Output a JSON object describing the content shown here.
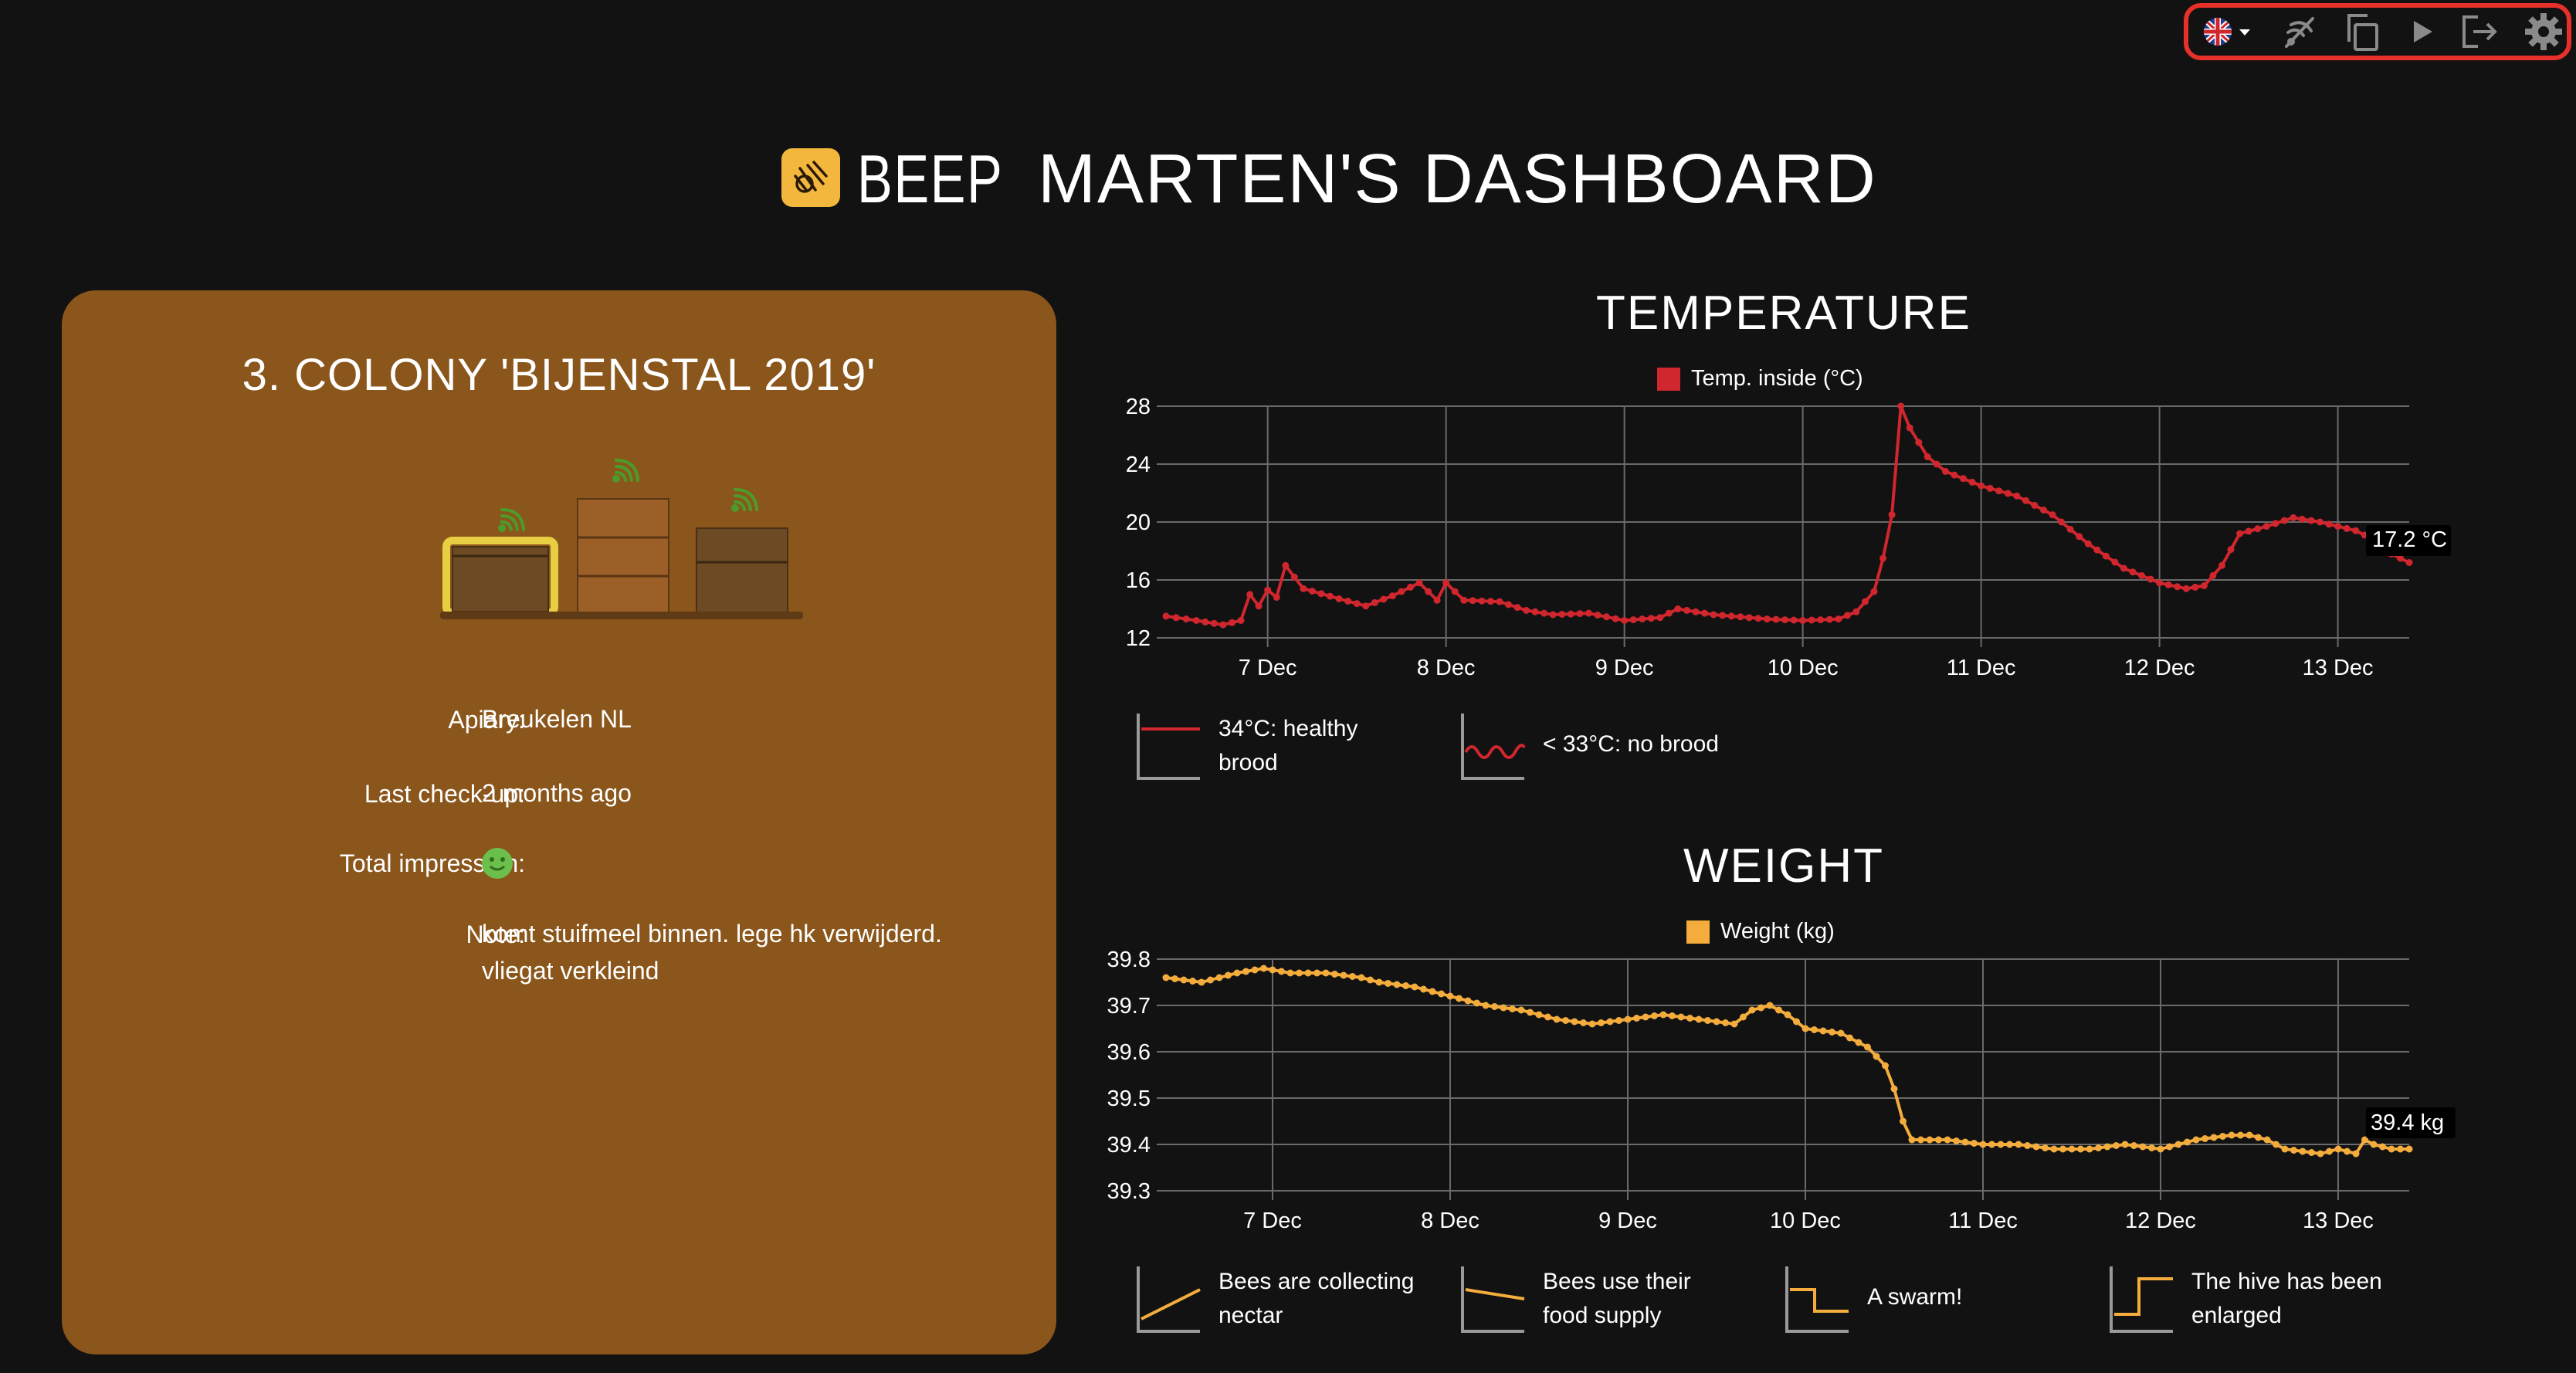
{
  "toolbar": {
    "items": [
      {
        "name": "language-selector",
        "icon": "uk-flag-icon"
      },
      {
        "name": "no-sensor-button",
        "icon": "sensor-off-icon"
      },
      {
        "name": "copy-button",
        "icon": "copy-icon"
      },
      {
        "name": "play-button",
        "icon": "play-icon"
      },
      {
        "name": "logout-button",
        "icon": "logout-icon"
      },
      {
        "name": "settings-button",
        "icon": "gear-icon"
      }
    ]
  },
  "header": {
    "brand": "BEEP",
    "title": "MARTEN'S DASHBOARD",
    "logo_color": "#f4b73e"
  },
  "colony": {
    "title": "3. COLONY 'BIJENSTAL 2019'",
    "rows": [
      {
        "label": "Apiary:",
        "value": "Breukelen NL"
      },
      {
        "label": "Last check-up:",
        "value": "2 months ago"
      },
      {
        "label": "Total impression:",
        "value": "good",
        "icon": "smiley-icon"
      },
      {
        "label": "Note:",
        "value": "komt stuifmeel binnen. lege hk verwijderd. vliegat verkleind"
      }
    ],
    "card_color": "#8b561b"
  },
  "temperature": {
    "title": "TEMPERATURE",
    "legend": "Temp. inside (°C)",
    "current_value": "17.2 °C",
    "explanations": [
      {
        "text": "34°C: healthy brood",
        "icon": "healthy-brood-icon"
      },
      {
        "text": "< 33°C: no brood",
        "icon": "no-brood-icon"
      }
    ]
  },
  "weight": {
    "title": "WEIGHT",
    "legend": "Weight (kg)",
    "current_value": "39.4 kg",
    "explanations": [
      {
        "text": "Bees are collecting nectar",
        "icon": "weight-rising-icon"
      },
      {
        "text": "Bees use their food supply",
        "icon": "weight-falling-icon"
      },
      {
        "text": "A swarm!",
        "icon": "weight-drop-icon"
      },
      {
        "text": "The hive has been enlarged",
        "icon": "weight-jump-icon"
      }
    ]
  },
  "chart_data": [
    {
      "type": "line",
      "title": "TEMPERATURE",
      "series_name": "Temp. inside (°C)",
      "color": "#d0262e",
      "xlabel": "",
      "ylabel": "",
      "ylim": [
        12,
        28
      ],
      "yticks": [
        12,
        16,
        20,
        24,
        28
      ],
      "xlim": [
        6.43,
        13.4
      ],
      "xticks": [
        7,
        8,
        9,
        10,
        11,
        12,
        13
      ],
      "xticklabels": [
        "7 Dec",
        "8 Dec",
        "9 Dec",
        "10 Dec",
        "11 Dec",
        "12 Dec",
        "13 Dec"
      ],
      "points": [
        [
          6.43,
          13.5
        ],
        [
          6.6,
          13.2
        ],
        [
          6.75,
          12.9
        ],
        [
          6.85,
          13.2
        ],
        [
          6.9,
          15.0
        ],
        [
          6.95,
          14.2
        ],
        [
          7.0,
          15.3
        ],
        [
          7.05,
          14.8
        ],
        [
          7.1,
          17.0
        ],
        [
          7.2,
          15.4
        ],
        [
          7.4,
          14.7
        ],
        [
          7.55,
          14.2
        ],
        [
          7.7,
          14.9
        ],
        [
          7.85,
          15.8
        ],
        [
          7.95,
          14.6
        ],
        [
          8.0,
          15.8
        ],
        [
          8.1,
          14.6
        ],
        [
          8.3,
          14.5
        ],
        [
          8.45,
          13.9
        ],
        [
          8.6,
          13.6
        ],
        [
          8.8,
          13.7
        ],
        [
          9.0,
          13.2
        ],
        [
          9.2,
          13.4
        ],
        [
          9.3,
          14.0
        ],
        [
          9.5,
          13.6
        ],
        [
          9.8,
          13.3
        ],
        [
          10.0,
          13.2
        ],
        [
          10.2,
          13.3
        ],
        [
          10.3,
          13.8
        ],
        [
          10.4,
          15.2
        ],
        [
          10.45,
          17.5
        ],
        [
          10.5,
          20.5
        ],
        [
          10.55,
          28.0
        ],
        [
          10.6,
          26.5
        ],
        [
          10.7,
          24.5
        ],
        [
          10.8,
          23.5
        ],
        [
          11.0,
          22.5
        ],
        [
          11.2,
          21.8
        ],
        [
          11.4,
          20.5
        ],
        [
          11.6,
          18.5
        ],
        [
          11.8,
          16.8
        ],
        [
          12.0,
          15.8
        ],
        [
          12.15,
          15.4
        ],
        [
          12.25,
          15.6
        ],
        [
          12.35,
          17.0
        ],
        [
          12.45,
          19.2
        ],
        [
          12.6,
          19.7
        ],
        [
          12.75,
          20.3
        ],
        [
          12.9,
          20.0
        ],
        [
          13.1,
          19.4
        ],
        [
          13.2,
          18.8
        ],
        [
          13.3,
          17.8
        ],
        [
          13.4,
          17.2
        ]
      ]
    },
    {
      "type": "line",
      "title": "WEIGHT",
      "series_name": "Weight (kg)",
      "color": "#f4ad3d",
      "xlabel": "",
      "ylabel": "",
      "ylim": [
        39.3,
        39.8
      ],
      "yticks": [
        39.3,
        39.4,
        39.5,
        39.6,
        39.7,
        39.8
      ],
      "xlim": [
        6.4,
        13.4
      ],
      "xticks": [
        7,
        8,
        9,
        10,
        11,
        12,
        13
      ],
      "xticklabels": [
        "7 Dec",
        "8 Dec",
        "9 Dec",
        "10 Dec",
        "11 Dec",
        "12 Dec",
        "13 Dec"
      ],
      "points": [
        [
          6.4,
          39.76
        ],
        [
          6.6,
          39.75
        ],
        [
          6.8,
          39.77
        ],
        [
          6.95,
          39.78
        ],
        [
          7.1,
          39.77
        ],
        [
          7.3,
          39.77
        ],
        [
          7.5,
          39.76
        ],
        [
          7.6,
          39.75
        ],
        [
          7.8,
          39.74
        ],
        [
          8.0,
          39.72
        ],
        [
          8.2,
          39.7
        ],
        [
          8.4,
          39.69
        ],
        [
          8.6,
          39.67
        ],
        [
          8.8,
          39.66
        ],
        [
          9.0,
          39.67
        ],
        [
          9.2,
          39.68
        ],
        [
          9.4,
          39.67
        ],
        [
          9.6,
          39.66
        ],
        [
          9.7,
          39.69
        ],
        [
          9.8,
          39.7
        ],
        [
          9.9,
          39.68
        ],
        [
          10.0,
          39.65
        ],
        [
          10.2,
          39.64
        ],
        [
          10.35,
          39.61
        ],
        [
          10.45,
          39.57
        ],
        [
          10.5,
          39.52
        ],
        [
          10.55,
          39.45
        ],
        [
          10.6,
          39.41
        ],
        [
          10.7,
          39.41
        ],
        [
          10.8,
          39.41
        ],
        [
          11.0,
          39.4
        ],
        [
          11.2,
          39.4
        ],
        [
          11.4,
          39.39
        ],
        [
          11.6,
          39.39
        ],
        [
          11.8,
          39.4
        ],
        [
          12.0,
          39.39
        ],
        [
          12.1,
          39.4
        ],
        [
          12.2,
          39.41
        ],
        [
          12.4,
          39.42
        ],
        [
          12.5,
          39.42
        ],
        [
          12.6,
          39.41
        ],
        [
          12.7,
          39.39
        ],
        [
          12.9,
          39.38
        ],
        [
          13.0,
          39.39
        ],
        [
          13.1,
          39.38
        ],
        [
          13.15,
          39.41
        ],
        [
          13.2,
          39.4
        ],
        [
          13.3,
          39.39
        ],
        [
          13.4,
          39.39
        ]
      ]
    }
  ]
}
